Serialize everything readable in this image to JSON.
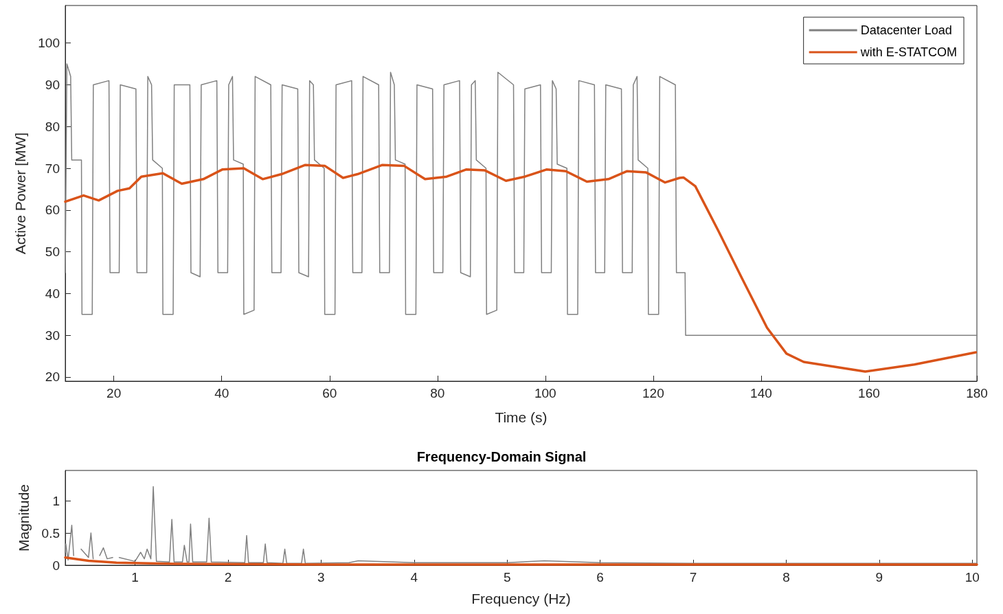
{
  "chart_data": [
    {
      "type": "line",
      "xlabel": "Time (s)",
      "ylabel": "Active Power [MW]",
      "xlim": [
        11,
        180
      ],
      "ylim": [
        19,
        109
      ],
      "xticks": [
        20,
        40,
        60,
        80,
        100,
        120,
        140,
        160,
        180
      ],
      "yticks": [
        20,
        30,
        40,
        50,
        60,
        70,
        80,
        90,
        100
      ],
      "grid": false,
      "legend": "top right",
      "series": [
        {
          "name": "Datacenter Load",
          "color": "#808080",
          "x": [
            11,
            11.3,
            12.0,
            12.2,
            14.0,
            14.1,
            16.0,
            16.2,
            19.1,
            19.3,
            21.0,
            21.2,
            24.1,
            24.3,
            26.1,
            26.3,
            27.0,
            27.2,
            29.0,
            29.1,
            31.0,
            31.2,
            34.1,
            34.3,
            36.0,
            36.2,
            39.1,
            39.3,
            41.1,
            41.3,
            42.0,
            42.2,
            44.0,
            44.1,
            46.0,
            46.2,
            49.1,
            49.3,
            51.0,
            51.2,
            54.1,
            54.3,
            56.1,
            56.3,
            57.0,
            57.2,
            59.0,
            59.1,
            61.0,
            61.2,
            64.1,
            64.3,
            66.0,
            66.2,
            69.1,
            69.3,
            71.1,
            71.3,
            72.0,
            72.2,
            74.0,
            74.1,
            76.0,
            76.2,
            79.1,
            79.3,
            81.0,
            81.2,
            84.1,
            84.3,
            86.1,
            86.3,
            87.0,
            87.2,
            89.0,
            89.1,
            91.0,
            91.2,
            94.1,
            94.3,
            96.0,
            96.2,
            99.1,
            99.3,
            101.1,
            101.3,
            102.0,
            102.2,
            104.0,
            104.1,
            106.0,
            106.2,
            109.1,
            109.3,
            111.0,
            111.2,
            114.1,
            114.3,
            116.1,
            116.3,
            117.0,
            117.2,
            119.0,
            119.1,
            121.0,
            121.2,
            124.1,
            124.3,
            125.9,
            126.0,
            180
          ],
          "values": [
            45,
            95,
            92,
            72,
            72,
            35,
            35,
            90,
            91,
            45,
            45,
            90,
            89,
            45,
            45,
            92,
            90,
            72,
            70,
            35,
            35,
            90,
            90,
            45,
            44,
            90,
            91,
            45,
            45,
            90,
            92,
            72,
            71,
            35,
            36,
            92,
            90,
            45,
            45,
            90,
            89,
            45,
            44,
            91,
            90,
            72,
            70,
            35,
            35,
            90,
            91,
            45,
            45,
            92,
            90,
            45,
            45,
            93,
            90,
            72,
            71,
            35,
            35,
            90,
            89,
            45,
            45,
            90,
            91,
            45,
            44,
            90,
            91,
            72,
            70,
            35,
            36,
            93,
            90,
            45,
            45,
            89,
            90,
            45,
            45,
            91,
            89,
            71,
            70,
            35,
            35,
            91,
            90,
            45,
            45,
            90,
            89,
            45,
            45,
            90,
            92,
            72,
            70,
            35,
            35,
            92,
            90,
            45,
            45,
            30,
            30
          ]
        },
        {
          "name": "with E-STATCOM",
          "color": "#d95319",
          "x": [
            11,
            14.4,
            17.2,
            20.7,
            22.9,
            25.1,
            29.1,
            32.6,
            36.6,
            40.1,
            44.1,
            47.6,
            51.1,
            55.5,
            59.1,
            62.5,
            65.2,
            69.8,
            73.8,
            77.7,
            81.7,
            85.3,
            88.8,
            92.7,
            96.2,
            100.2,
            103.8,
            107.7,
            111.7,
            115.1,
            118.7,
            122.2,
            124.9,
            125.6,
            127.8,
            132,
            136.5,
            141.1,
            144.7,
            147.9,
            159.3,
            168.4,
            179.8
          ],
          "values": [
            62,
            63.5,
            62.3,
            64.6,
            65.2,
            68,
            68.8,
            66.3,
            67.4,
            69.7,
            70,
            67.4,
            68.6,
            70.8,
            70.6,
            67.7,
            68.6,
            70.8,
            70.6,
            67.4,
            68,
            69.7,
            69.5,
            67,
            68,
            69.7,
            69.3,
            66.8,
            67.4,
            69.3,
            69,
            66.6,
            67.7,
            67.8,
            65.7,
            55.2,
            43.5,
            31.8,
            25.6,
            23.6,
            21.3,
            23,
            25.9
          ]
        }
      ]
    },
    {
      "type": "line",
      "title": "Frequency-Domain Signal",
      "xlabel": "Frequency (Hz)",
      "ylabel": "Magnitude",
      "xlim": [
        0.25,
        10.05
      ],
      "ylim": [
        0,
        1.47
      ],
      "xticks": [
        1,
        2,
        3,
        4,
        5,
        6,
        7,
        8,
        9,
        10
      ],
      "yticks": [
        0,
        0.5,
        1
      ],
      "grid": false,
      "legend": false,
      "series": [
        {
          "color": "#808080",
          "x": [
            0.25,
            0.256,
            0.28,
            0.32,
            0.34,
            0.386,
            0.42,
            0.5,
            0.526,
            0.55,
            0.586,
            0.62,
            0.66,
            0.7,
            0.76,
            0.793,
            0.83,
            1.0,
            1.06,
            1.1,
            1.13,
            1.17,
            1.196,
            1.23,
            1.37,
            1.396,
            1.42,
            1.51,
            1.53,
            1.56,
            1.58,
            1.597,
            1.62,
            1.77,
            1.796,
            1.82,
            2.18,
            2.2,
            2.22,
            2.38,
            2.4,
            2.42,
            2.59,
            2.61,
            2.63,
            2.79,
            2.81,
            2.83,
            3.3,
            3.4,
            4,
            5,
            5.4,
            6,
            7,
            8,
            9,
            10,
            10.05
          ],
          "values": [
            0.2,
            0.33,
            0.08,
            0.62,
            0.15,
            null,
            0.25,
            0.12,
            0.5,
            0.1,
            null,
            0.15,
            0.27,
            0.1,
            0.12,
            null,
            0.12,
            0.06,
            0.2,
            0.1,
            0.25,
            0.1,
            1.22,
            0.06,
            0.05,
            0.71,
            0.05,
            0.05,
            0.31,
            0.05,
            0.05,
            0.64,
            0.05,
            0.05,
            0.73,
            0.05,
            0.04,
            0.46,
            0.04,
            0.04,
            0.33,
            0.04,
            0.03,
            0.25,
            0.03,
            0.03,
            0.25,
            0.03,
            0.04,
            0.07,
            0.04,
            0.04,
            0.07,
            0.04,
            0.03,
            0.03,
            0.03,
            0.03,
            0.03
          ]
        },
        {
          "color": "#d95319",
          "x": [
            0.25,
            0.5,
            0.8,
            1.5,
            3,
            5,
            10,
            10.05
          ],
          "values": [
            0.12,
            0.07,
            0.04,
            0.02,
            0.01,
            0.01,
            0.01,
            0.01
          ]
        }
      ]
    }
  ]
}
